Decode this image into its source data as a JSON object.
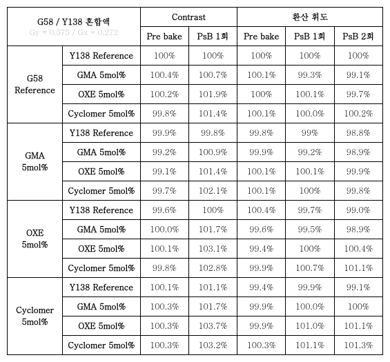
{
  "header": {
    "title_main": "G58 / Y138 혼합액",
    "title_sub": "Gy = 0.575 / Gx = 0.272",
    "group1": "Contrast",
    "group2": "환산 휘도",
    "cols": [
      "Pre bake",
      "PsB 1회",
      "Pre bake",
      "PsB 1회",
      "PsB 2회"
    ]
  },
  "rowGroups": [
    {
      "label": "G58\nReference",
      "rows": [
        {
          "label": "Y138 Reference",
          "cells": [
            "100%",
            "100%",
            "100%",
            "100%",
            "100%"
          ]
        },
        {
          "label": "GMA 5mol%",
          "cells": [
            "100.4%",
            "100.7%",
            "100.1%",
            "99.3%",
            "99.1%"
          ]
        },
        {
          "label": "OXE 5mol%",
          "cells": [
            "100.2%",
            "101.9%",
            "100%",
            "100.1%",
            "99.7%"
          ]
        },
        {
          "label": "Cyclomer 5mol%",
          "cells": [
            "99.8%",
            "101.4%",
            "100.1%",
            "100.0%",
            "100.2%"
          ]
        }
      ]
    },
    {
      "label": "GMA\n5mol%",
      "rows": [
        {
          "label": "Y138 Reference",
          "cells": [
            "99.9%",
            "99.8%",
            "99.8%",
            "99%",
            "98.8%"
          ]
        },
        {
          "label": "GMA 5mol%",
          "cells": [
            "99.2%",
            "100.9%",
            "99.9%",
            "99.2%",
            "98.9%"
          ]
        },
        {
          "label": "OXE 5mol%",
          "cells": [
            "99.1%",
            "101.4%",
            "100.1%",
            "100.1%",
            "99.9%"
          ]
        },
        {
          "label": "Cyclomer 5mol%",
          "cells": [
            "99.7%",
            "102.1%",
            "100.1%",
            "100%",
            "99.8%"
          ]
        }
      ]
    },
    {
      "label": "OXE\n5mol%",
      "rows": [
        {
          "label": "Y138 Reference",
          "cells": [
            "99.6%",
            "100%",
            "100.4%",
            "99.7%",
            "99.0%"
          ]
        },
        {
          "label": "GMA 5mol%",
          "cells": [
            "100.0%",
            "101.7%",
            "99.6%",
            "99.5%",
            "98.9%"
          ]
        },
        {
          "label": "OXE 5mol%",
          "cells": [
            "100.1%",
            "103.1%",
            "99.4%",
            "100%",
            "100.4%"
          ]
        },
        {
          "label": "Cyclomer 5mol%",
          "cells": [
            "99.8%",
            "102.8%",
            "99.9%",
            "100.7%",
            "101.1%"
          ]
        }
      ]
    },
    {
      "label": "Cyclomer\n5mol%",
      "rows": [
        {
          "label": "Y138 Reference",
          "cells": [
            "100.1%",
            "101.1%",
            "99.4%",
            "99.9%",
            "99.1%"
          ]
        },
        {
          "label": "GMA 5mol%",
          "cells": [
            "100.3%",
            "101.7%",
            "99.9%",
            "100.0%",
            "100%"
          ]
        },
        {
          "label": "OXE 5mol%",
          "cells": [
            "100.3%",
            "103.7%",
            "99.9%",
            "101.0%",
            "101.1%"
          ]
        },
        {
          "label": "Cyclomer 5mol%",
          "cells": [
            "100.3%",
            "103.2%",
            "100.3%",
            "101.1%",
            "101.3%"
          ]
        }
      ]
    }
  ]
}
